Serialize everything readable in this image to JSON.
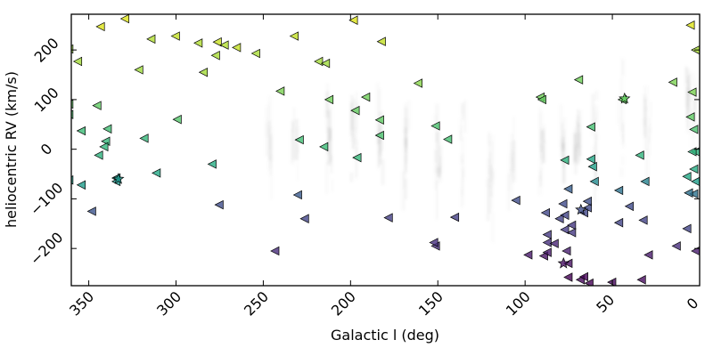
{
  "chart_data": {
    "type": "scatter",
    "xlabel": "Galactic l (deg)",
    "ylabel": "heliocentric RV (km/s)",
    "xlim": [
      360,
      0
    ],
    "ylim": [
      -275,
      272
    ],
    "x_reversed": true,
    "grid": false,
    "legend": "none",
    "x_ticks": [
      350,
      300,
      250,
      200,
      150,
      100,
      50,
      0
    ],
    "y_ticks": [
      200,
      100,
      0,
      -100,
      -200
    ],
    "colormap": "viridis (color encodes radial velocity)",
    "background_density": {
      "description": "faint grey vertical streaks of many stars",
      "color": "#808080",
      "bands": [
        {
          "x": 247,
          "y": 15,
          "spread": 60,
          "strength": 0.35
        },
        {
          "x": 232,
          "y": 10,
          "spread": 60,
          "strength": 0.4
        },
        {
          "x": 212,
          "y": 25,
          "spread": 60,
          "strength": 0.6
        },
        {
          "x": 198,
          "y": 25,
          "spread": 60,
          "strength": 0.6
        },
        {
          "x": 183,
          "y": 15,
          "spread": 60,
          "strength": 0.55
        },
        {
          "x": 168,
          "y": 5,
          "spread": 60,
          "strength": 0.5
        },
        {
          "x": 150,
          "y": -15,
          "spread": 60,
          "strength": 0.55
        },
        {
          "x": 136,
          "y": -20,
          "spread": 60,
          "strength": 0.4
        },
        {
          "x": 120,
          "y": -50,
          "spread": 60,
          "strength": 0.55
        },
        {
          "x": 108,
          "y": -40,
          "spread": 60,
          "strength": 0.35
        },
        {
          "x": 90,
          "y": -30,
          "spread": 60,
          "strength": 0.5
        },
        {
          "x": 78,
          "y": 0,
          "spread": 40,
          "strength": 0.55
        },
        {
          "x": 70,
          "y": 10,
          "spread": 40,
          "strength": 0.55
        },
        {
          "x": 60,
          "y": 20,
          "spread": 70,
          "strength": 0.5
        },
        {
          "x": 45,
          "y": 40,
          "spread": 70,
          "strength": 0.35
        },
        {
          "x": 30,
          "y": 40,
          "spread": 70,
          "strength": 0.4
        },
        {
          "x": 6,
          "y": 110,
          "spread": 40,
          "strength": 0.45
        },
        {
          "x": 3,
          "y": 70,
          "spread": 40,
          "strength": 0.3
        }
      ]
    },
    "series": [
      {
        "marker": "triangle-left",
        "points": [
          {
            "x": 329,
            "y": 263,
            "color": "#dde318"
          },
          {
            "x": 343,
            "y": 247,
            "color": "#dde318"
          },
          {
            "x": 314,
            "y": 222,
            "color": "#b0dd2f"
          },
          {
            "x": 300,
            "y": 228,
            "color": "#c2df23"
          },
          {
            "x": 287,
            "y": 214,
            "color": "#b0dd2f"
          },
          {
            "x": 276,
            "y": 216,
            "color": "#c8e020"
          },
          {
            "x": 272,
            "y": 210,
            "color": "#b0dd2f"
          },
          {
            "x": 265,
            "y": 205,
            "color": "#c2df23"
          },
          {
            "x": 277,
            "y": 189,
            "color": "#a8db34"
          },
          {
            "x": 284,
            "y": 155,
            "color": "#a2da37"
          },
          {
            "x": 321,
            "y": 160,
            "color": "#9dd93b"
          },
          {
            "x": 356,
            "y": 177,
            "color": "#a2da37"
          },
          {
            "x": 361,
            "y": 202,
            "color": "#95d840"
          },
          {
            "x": 254,
            "y": 193,
            "color": "#a8db34"
          },
          {
            "x": 232,
            "y": 228,
            "color": "#c2df23"
          },
          {
            "x": 218,
            "y": 177,
            "color": "#a2da37"
          },
          {
            "x": 214,
            "y": 173,
            "color": "#9dd93b"
          },
          {
            "x": 198,
            "y": 260,
            "color": "#dde318"
          },
          {
            "x": 182,
            "y": 217,
            "color": "#c2df23"
          },
          {
            "x": 161,
            "y": 133,
            "color": "#87d549"
          },
          {
            "x": 240,
            "y": 117,
            "color": "#7ad151"
          },
          {
            "x": 212,
            "y": 100,
            "color": "#6ece58"
          },
          {
            "x": 197,
            "y": 78,
            "color": "#63cb5f"
          },
          {
            "x": 191,
            "y": 105,
            "color": "#6ece58"
          },
          {
            "x": 183,
            "y": 59,
            "color": "#5ec962"
          },
          {
            "x": 183,
            "y": 28,
            "color": "#4ac16d"
          },
          {
            "x": 151,
            "y": 47,
            "color": "#4ac16d"
          },
          {
            "x": 144,
            "y": 20,
            "color": "#44bf70"
          },
          {
            "x": 229,
            "y": 19,
            "color": "#40bd72"
          },
          {
            "x": 215,
            "y": 5,
            "color": "#3bbb75"
          },
          {
            "x": 196,
            "y": -17,
            "color": "#35b779"
          },
          {
            "x": 345,
            "y": 88,
            "color": "#5ec962"
          },
          {
            "x": 339,
            "y": 41,
            "color": "#40bd72"
          },
          {
            "x": 354,
            "y": 37,
            "color": "#3bbb75"
          },
          {
            "x": 340,
            "y": 16,
            "color": "#35b779"
          },
          {
            "x": 341,
            "y": 5,
            "color": "#31b57b"
          },
          {
            "x": 344,
            "y": -12,
            "color": "#2db27d"
          },
          {
            "x": 318,
            "y": 22,
            "color": "#35b779"
          },
          {
            "x": 299,
            "y": 60,
            "color": "#52c569"
          },
          {
            "x": 361,
            "y": 91,
            "color": "#5ec962"
          },
          {
            "x": 361,
            "y": 70,
            "color": "#4ac16d"
          },
          {
            "x": 279,
            "y": -30,
            "color": "#25ab82"
          },
          {
            "x": 311,
            "y": -48,
            "color": "#22a785"
          },
          {
            "x": 361,
            "y": -62,
            "color": "#1f9e89"
          },
          {
            "x": 354,
            "y": -72,
            "color": "#1e9b8a"
          },
          {
            "x": 334,
            "y": -58,
            "color": "#1f988b"
          },
          {
            "x": 334,
            "y": -65,
            "color": "#1f968b"
          },
          {
            "x": 348,
            "y": -125,
            "color": "#3b528b"
          },
          {
            "x": 275,
            "y": -112,
            "color": "#3e4c8a"
          },
          {
            "x": 230,
            "y": -92,
            "color": "#38598c"
          },
          {
            "x": 226,
            "y": -140,
            "color": "#414487"
          },
          {
            "x": 243,
            "y": -205,
            "color": "#472c7a"
          },
          {
            "x": 178,
            "y": -138,
            "color": "#433e85"
          },
          {
            "x": 151,
            "y": -195,
            "color": "#472f7d"
          },
          {
            "x": 152,
            "y": -188,
            "color": "#46307e"
          },
          {
            "x": 140,
            "y": -137,
            "color": "#433e85"
          },
          {
            "x": 105,
            "y": -103,
            "color": "#3e4c8a"
          },
          {
            "x": 88,
            "y": -128,
            "color": "#404688"
          },
          {
            "x": 98,
            "y": -213,
            "color": "#48186a"
          },
          {
            "x": 87,
            "y": -188,
            "color": "#46307e"
          },
          {
            "x": 87,
            "y": -172,
            "color": "#453882"
          },
          {
            "x": 89,
            "y": -215,
            "color": "#471365"
          },
          {
            "x": 87,
            "y": -208,
            "color": "#481a6c"
          },
          {
            "x": 83,
            "y": -190,
            "color": "#482475"
          },
          {
            "x": 77,
            "y": -162,
            "color": "#443a83"
          },
          {
            "x": 73,
            "y": -153,
            "color": "#453781"
          },
          {
            "x": 80,
            "y": -140,
            "color": "#424186"
          },
          {
            "x": 77,
            "y": -133,
            "color": "#414487"
          },
          {
            "x": 78,
            "y": -110,
            "color": "#3e4a89"
          },
          {
            "x": 75,
            "y": -80,
            "color": "#365c8d"
          },
          {
            "x": 73,
            "y": -168,
            "color": "#453882"
          },
          {
            "x": 75,
            "y": -230,
            "color": "#471063"
          },
          {
            "x": 76,
            "y": -205,
            "color": "#481f70"
          },
          {
            "x": 66,
            "y": -128,
            "color": "#404688"
          },
          {
            "x": 64,
            "y": -118,
            "color": "#3f4889"
          },
          {
            "x": 64,
            "y": -105,
            "color": "#3d4d8a"
          },
          {
            "x": 75,
            "y": -258,
            "color": "#440154"
          },
          {
            "x": 68,
            "y": -263,
            "color": "#46085c"
          },
          {
            "x": 66,
            "y": -257,
            "color": "#450457"
          },
          {
            "x": 63,
            "y": -270,
            "color": "#440154"
          },
          {
            "x": 50,
            "y": -268,
            "color": "#46085c"
          },
          {
            "x": 33,
            "y": -263,
            "color": "#460b5e"
          },
          {
            "x": 60,
            "y": -65,
            "color": "#23898e"
          },
          {
            "x": 61,
            "y": -35,
            "color": "#1fa088"
          },
          {
            "x": 62,
            "y": -20,
            "color": "#21a685"
          },
          {
            "x": 62,
            "y": 45,
            "color": "#44bf70"
          },
          {
            "x": 77,
            "y": -22,
            "color": "#2db27d"
          },
          {
            "x": 69,
            "y": 140,
            "color": "#6ece58"
          },
          {
            "x": 91,
            "y": 105,
            "color": "#6ece58"
          },
          {
            "x": 90,
            "y": 100,
            "color": "#63cb5f"
          },
          {
            "x": 44,
            "y": 100,
            "color": "#63cb5f"
          },
          {
            "x": 46,
            "y": -83,
            "color": "#2c728e"
          },
          {
            "x": 46,
            "y": -148,
            "color": "#414487"
          },
          {
            "x": 40,
            "y": -115,
            "color": "#3e4a89"
          },
          {
            "x": 32,
            "y": -143,
            "color": "#424186"
          },
          {
            "x": 29,
            "y": -213,
            "color": "#481a6c"
          },
          {
            "x": 31,
            "y": -65,
            "color": "#26828e"
          },
          {
            "x": 34,
            "y": -12,
            "color": "#2fb47c"
          },
          {
            "x": 15,
            "y": 135,
            "color": "#7ad151"
          },
          {
            "x": 5,
            "y": 250,
            "color": "#dde318"
          },
          {
            "x": 2,
            "y": 200,
            "color": "#a8db34"
          },
          {
            "x": 4,
            "y": 115,
            "color": "#7ad151"
          },
          {
            "x": 5,
            "y": 65,
            "color": "#5ec962"
          },
          {
            "x": 3,
            "y": 40,
            "color": "#4ac16d"
          },
          {
            "x": 2,
            "y": -5,
            "color": "#2db27d"
          },
          {
            "x": 4,
            "y": -5,
            "color": "#2fb47c"
          },
          {
            "x": 3,
            "y": -40,
            "color": "#25ab82"
          },
          {
            "x": 7,
            "y": -55,
            "color": "#22a785"
          },
          {
            "x": 2,
            "y": -65,
            "color": "#1f9e89"
          },
          {
            "x": 3,
            "y": -90,
            "color": "#2c728e"
          },
          {
            "x": 6,
            "y": -88,
            "color": "#2d708e"
          },
          {
            "x": 7,
            "y": -160,
            "color": "#414487"
          },
          {
            "x": 13,
            "y": -195,
            "color": "#472e7c"
          },
          {
            "x": 2,
            "y": -205,
            "color": "#481c6e"
          }
        ]
      },
      {
        "marker": "star",
        "points": [
          {
            "x": 333,
            "y": -60,
            "color": "#1f958b"
          },
          {
            "x": 43,
            "y": 102,
            "color": "#63cb5f"
          },
          {
            "x": 68,
            "y": -122,
            "color": "#3e4c8a"
          },
          {
            "x": 78,
            "y": -230,
            "color": "#471063"
          }
        ]
      }
    ]
  }
}
